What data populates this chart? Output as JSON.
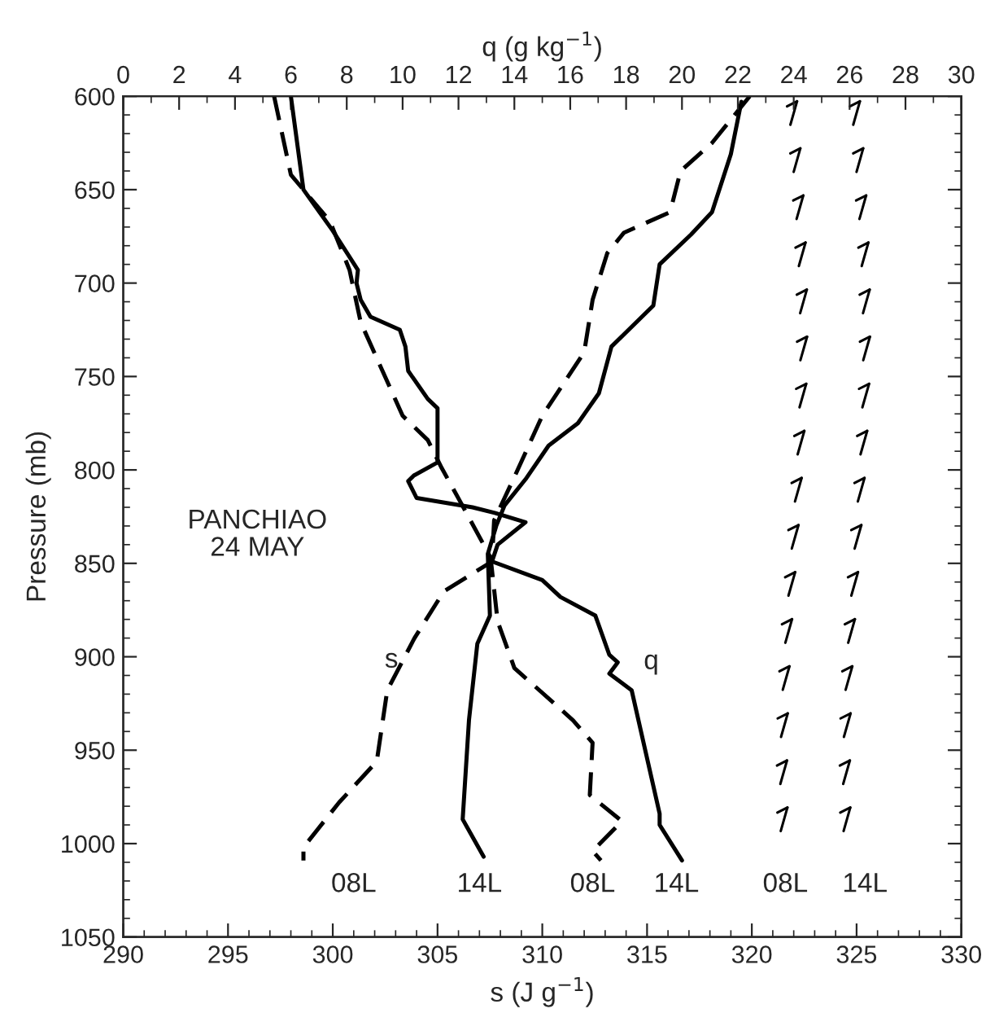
{
  "chart_data": {
    "type": "line",
    "xlabel": "s (J g$^{−1}$)",
    "x2label": "q (g kg$^{−1}$)",
    "ylabel": "Pressure (mb)",
    "xlim": [
      290,
      330
    ],
    "xticks": [
      290,
      295,
      300,
      305,
      310,
      315,
      320,
      325,
      330
    ],
    "x2lim": [
      0,
      30
    ],
    "x2ticks": [
      0,
      2,
      4,
      6,
      8,
      10,
      12,
      14,
      16,
      18,
      20,
      22,
      24,
      26,
      28,
      30
    ],
    "ylim": [
      1050,
      600
    ],
    "yticks": [
      600,
      650,
      700,
      750,
      800,
      850,
      900,
      950,
      1000,
      1050
    ],
    "grid": false,
    "legend": false,
    "series": [
      {
        "color": "#000000",
        "line_style": "dashed",
        "x": [
          319.9,
          318.1,
          316.6,
          316.1,
          313.9,
          313.1,
          312.4,
          312.0,
          310.0,
          308.7,
          307.7,
          307.6,
          305.3,
          303.9,
          302.6,
          302.1,
          300.3,
          298.6,
          298.6
        ],
        "values": [
          600,
          625,
          640,
          662,
          673,
          684,
          709,
          737,
          771,
          803,
          827,
          849,
          865,
          890,
          918,
          956,
          978,
          1002,
          1009
        ]
      },
      {
        "color": "#000000",
        "line_style": "solid",
        "x": [
          319.5,
          319.0,
          318.1,
          317.1,
          315.6,
          315.3,
          313.3,
          312.7,
          311.7,
          310.3,
          309.2,
          308.2,
          307.8,
          307.4,
          307.5,
          306.9,
          306.5,
          306.2,
          307.2
        ],
        "values": [
          603,
          631,
          662,
          674,
          690,
          712,
          734,
          759,
          775,
          787,
          805,
          819,
          830,
          845,
          878,
          893,
          934,
          987,
          1007
        ]
      },
      {
        "color": "#000000",
        "line_style": "dashed",
        "axis": "x2",
        "x": [
          5.4,
          6.0,
          7.4,
          8.1,
          8.5,
          9.25,
          10.0,
          10.9,
          11.4,
          12.1,
          12.9,
          13.15,
          13.4,
          14.0,
          16.1,
          16.8,
          16.7,
          17.85,
          16.8,
          17.1
        ],
        "values": [
          600,
          642,
          667,
          693,
          721,
          746,
          771,
          784,
          799,
          818,
          840,
          847,
          881,
          906,
          934,
          946,
          974,
          988,
          1004,
          1009
        ]
      },
      {
        "color": "#000000",
        "line_style": "solid",
        "axis": "x2",
        "x": [
          6.0,
          6.45,
          7.5,
          8.4,
          8.35,
          8.5,
          8.85,
          9.9,
          10.1,
          10.2,
          10.9,
          11.25,
          11.25,
          10.4,
          10.2,
          10.5,
          12.5,
          13.3,
          14.4,
          13.4,
          13.2,
          15.0,
          15.65,
          16.9,
          17.4,
          17.7,
          17.4,
          18.2,
          19.2,
          19.2,
          20.0
        ],
        "values": [
          600,
          650,
          672,
          693,
          700,
          709,
          718,
          725,
          734,
          747,
          762,
          767,
          796,
          803,
          806,
          815,
          820,
          823,
          828,
          840,
          849,
          859,
          868,
          878,
          899,
          903,
          909,
          918,
          984,
          990,
          1009
        ]
      }
    ],
    "annotations": [
      "PANCHIAO\n24 MAY",
      {
        "text": "s",
        "x": 302.8,
        "y": 902
      },
      "q",
      "08L",
      "14L",
      "08L",
      "14L",
      "08L",
      "14L"
    ]
  }
}
